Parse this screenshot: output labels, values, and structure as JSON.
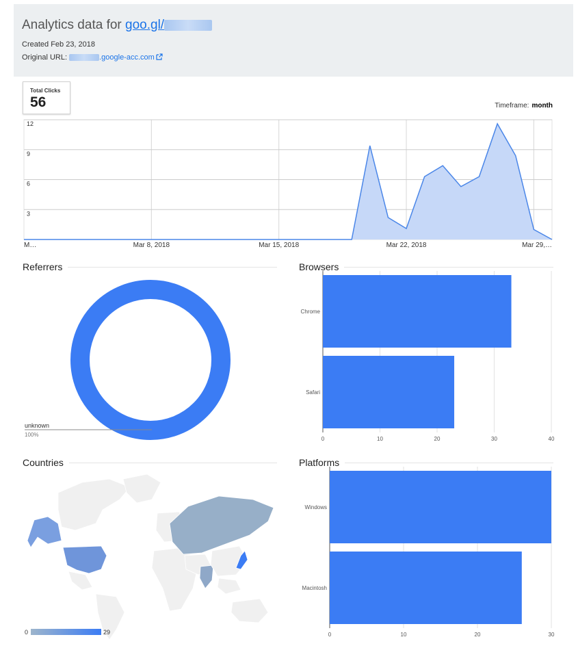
{
  "header": {
    "title_prefix": "Analytics data for ",
    "short_link": "goo.gl/",
    "created": "Created Feb 23, 2018",
    "original_url_label": "Original URL:",
    "original_url_domain": ".google-acc.com"
  },
  "total_clicks": {
    "label": "Total Clicks",
    "value": "56"
  },
  "timeframe": {
    "label": "Timeframe:",
    "value": "month"
  },
  "sections": {
    "referrers": "Referrers",
    "browsers": "Browsers",
    "countries": "Countries",
    "platforms": "Platforms"
  },
  "chart_data": [
    {
      "type": "area",
      "x_tick_labels": [
        "M…",
        "Mar 8, 2018",
        "Mar 15, 2018",
        "Mar 22, 2018",
        "Mar 29,…"
      ],
      "y_ticks": [
        3,
        6,
        9,
        12
      ],
      "ylim": [
        0,
        12
      ],
      "x": [
        "Mar 1",
        "Mar 2",
        "Mar 3",
        "Mar 4",
        "Mar 5",
        "Mar 6",
        "Mar 7",
        "Mar 8",
        "Mar 9",
        "Mar 10",
        "Mar 11",
        "Mar 12",
        "Mar 13",
        "Mar 14",
        "Mar 15",
        "Mar 16",
        "Mar 17",
        "Mar 18",
        "Mar 19",
        "Mar 20",
        "Mar 21",
        "Mar 22",
        "Mar 23",
        "Mar 24",
        "Mar 25",
        "Mar 26",
        "Mar 27",
        "Mar 28",
        "Mar 29",
        "Mar 30"
      ],
      "values": [
        0,
        0,
        0,
        0,
        0,
        0,
        0,
        0,
        0,
        0,
        0,
        0,
        0,
        0,
        0,
        0,
        0,
        0,
        0,
        9.4,
        2.2,
        1.1,
        6.3,
        7.4,
        5.3,
        6.3,
        11.6,
        8.4,
        1.0,
        0
      ],
      "color": "#4a86e8"
    },
    {
      "type": "pie",
      "slices": [
        {
          "label": "unknown",
          "percent": "100%",
          "value": 100
        }
      ],
      "color": "#3b7cf4"
    },
    {
      "type": "bar",
      "orientation": "horizontal",
      "categories": [
        "Chrome",
        "Safari"
      ],
      "values": [
        33,
        23
      ],
      "xlim": [
        0,
        40
      ],
      "x_ticks": [
        0,
        10,
        20,
        30,
        40
      ],
      "color": "#3b7cf4"
    },
    {
      "type": "bar",
      "orientation": "horizontal",
      "categories": [
        "Windows",
        "Macintosh"
      ],
      "values": [
        30,
        26
      ],
      "xlim": [
        0,
        30
      ],
      "x_ticks": [
        0,
        10,
        20,
        30
      ],
      "color": "#3b7cf4"
    }
  ],
  "countries_legend": {
    "min": "0",
    "max": "29"
  },
  "colors": {
    "accent": "#3b7cf4",
    "link": "#1a73e8",
    "header_bg": "#eceff1"
  }
}
